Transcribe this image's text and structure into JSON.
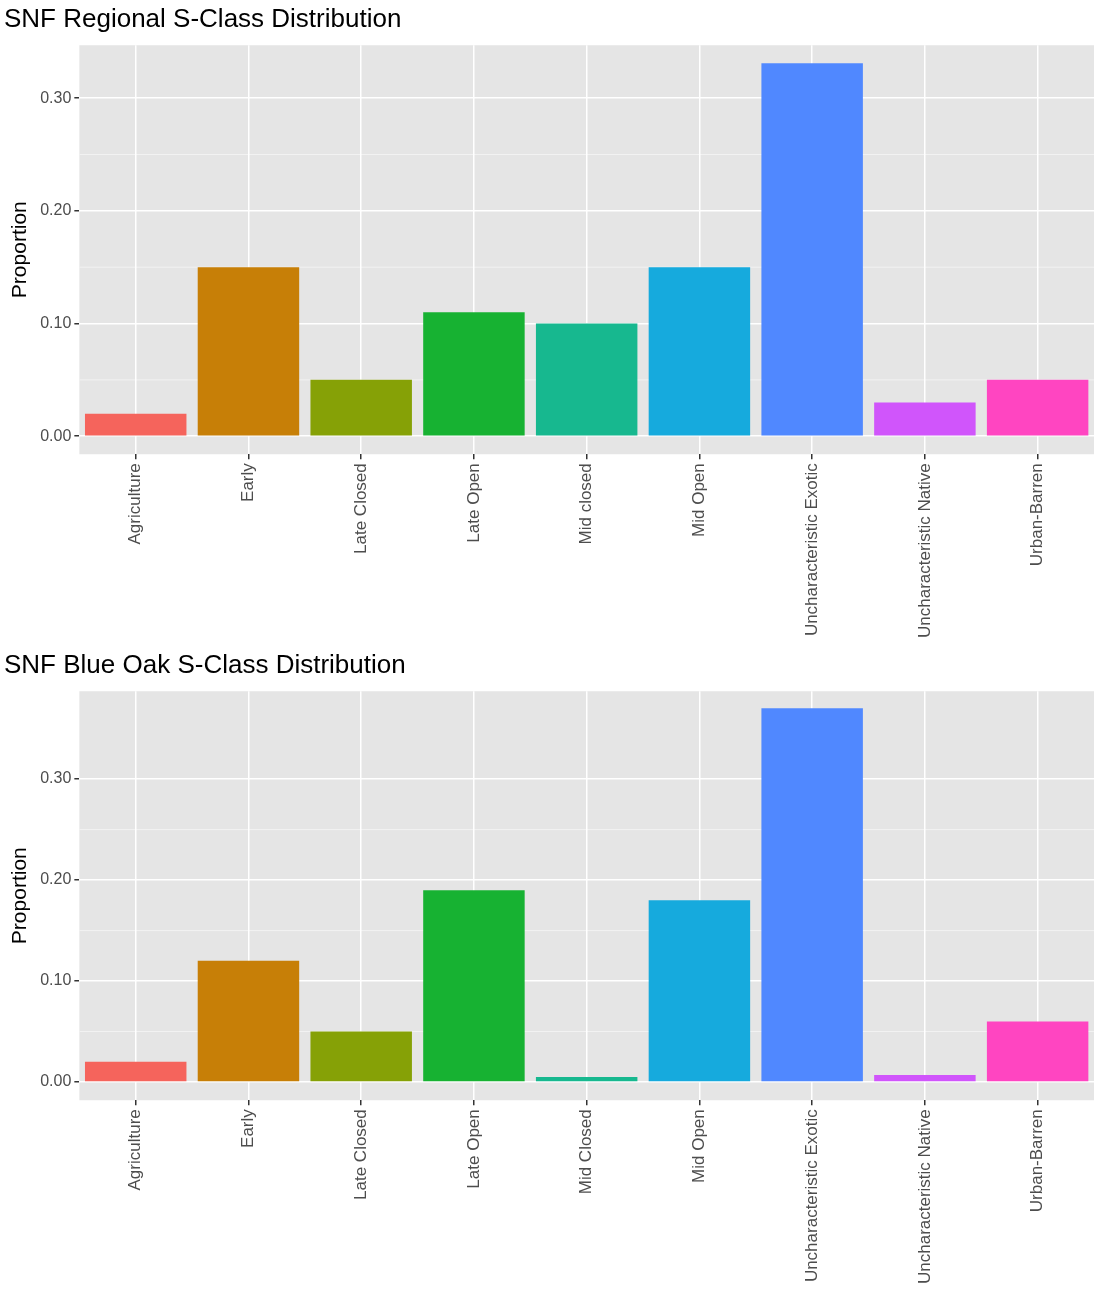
{
  "chart_data": [
    {
      "type": "bar",
      "title": "SNF Regional S-Class Distribution",
      "ylabel": "Proportion",
      "categories": [
        "Agriculture",
        "Early",
        "Late Closed",
        "Late Open",
        "Mid closed",
        "Mid Open",
        "Uncharacteristic Exotic",
        "Uncharacteristic Native",
        "Urban-Barren"
      ],
      "values": [
        0.02,
        0.15,
        0.05,
        0.11,
        0.1,
        0.15,
        0.331,
        0.03,
        0.05
      ],
      "colors": [
        "#f5645c",
        "#c77f07",
        "#86a106",
        "#17b232",
        "#17b88f",
        "#16aadd",
        "#5088ff",
        "#d055fb",
        "#ff45c1"
      ],
      "ylim": [
        -0.016,
        0.347
      ],
      "yticks": [
        {
          "value": 0,
          "label": "0.00"
        },
        {
          "value": 0.1,
          "label": "0.10"
        },
        {
          "value": 0.2,
          "label": "0.20"
        },
        {
          "value": 0.3,
          "label": "0.30"
        }
      ],
      "grid": true
    },
    {
      "type": "bar",
      "title": "SNF Blue Oak S-Class Distribution",
      "ylabel": "Proportion",
      "categories": [
        "Agriculture",
        "Early",
        "Late Closed",
        "Late Open",
        "Mid Closed",
        "Mid Open",
        "Uncharacteristic Exotic",
        "Uncharacteristic Native",
        "Urban-Barren"
      ],
      "values": [
        0.02,
        0.12,
        0.05,
        0.19,
        0.005,
        0.18,
        0.37,
        0.007,
        0.06
      ],
      "colors": [
        "#f5645c",
        "#c77f07",
        "#86a106",
        "#17b232",
        "#17b88f",
        "#16aadd",
        "#5088ff",
        "#d055fb",
        "#ff45c1"
      ],
      "ylim": [
        -0.018,
        0.387
      ],
      "yticks": [
        {
          "value": 0,
          "label": "0.00"
        },
        {
          "value": 0.1,
          "label": "0.10"
        },
        {
          "value": 0.2,
          "label": "0.20"
        },
        {
          "value": 0.3,
          "label": "0.30"
        }
      ],
      "grid": true
    }
  ]
}
